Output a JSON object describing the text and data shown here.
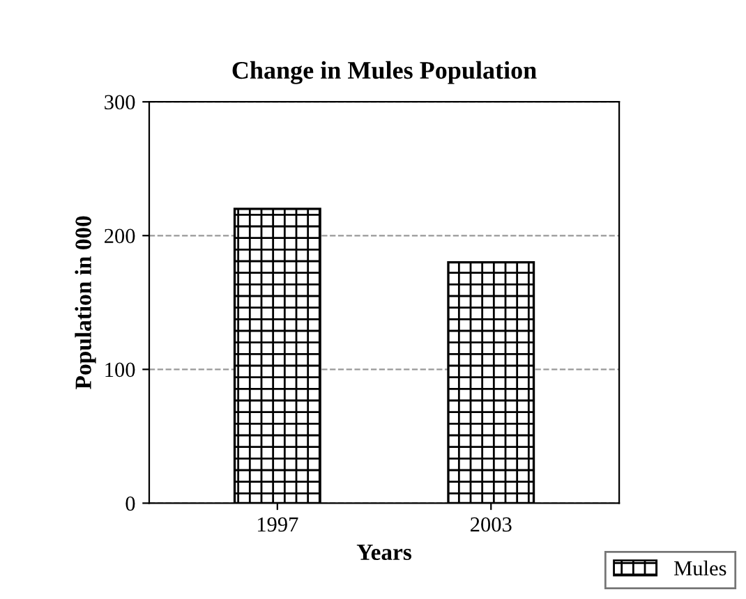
{
  "chart_data": {
    "type": "bar",
    "title": "Change in Mules Population",
    "xlabel": "Years",
    "ylabel": "Population in 000",
    "categories": [
      "1997",
      "2003"
    ],
    "series": [
      {
        "name": "Mules",
        "color": "#000000",
        "values": [
          220,
          180
        ]
      }
    ],
    "ylim": [
      0,
      300
    ],
    "yticks": [
      0,
      100,
      200,
      300
    ],
    "grid": "y",
    "legend": "bottom right"
  }
}
